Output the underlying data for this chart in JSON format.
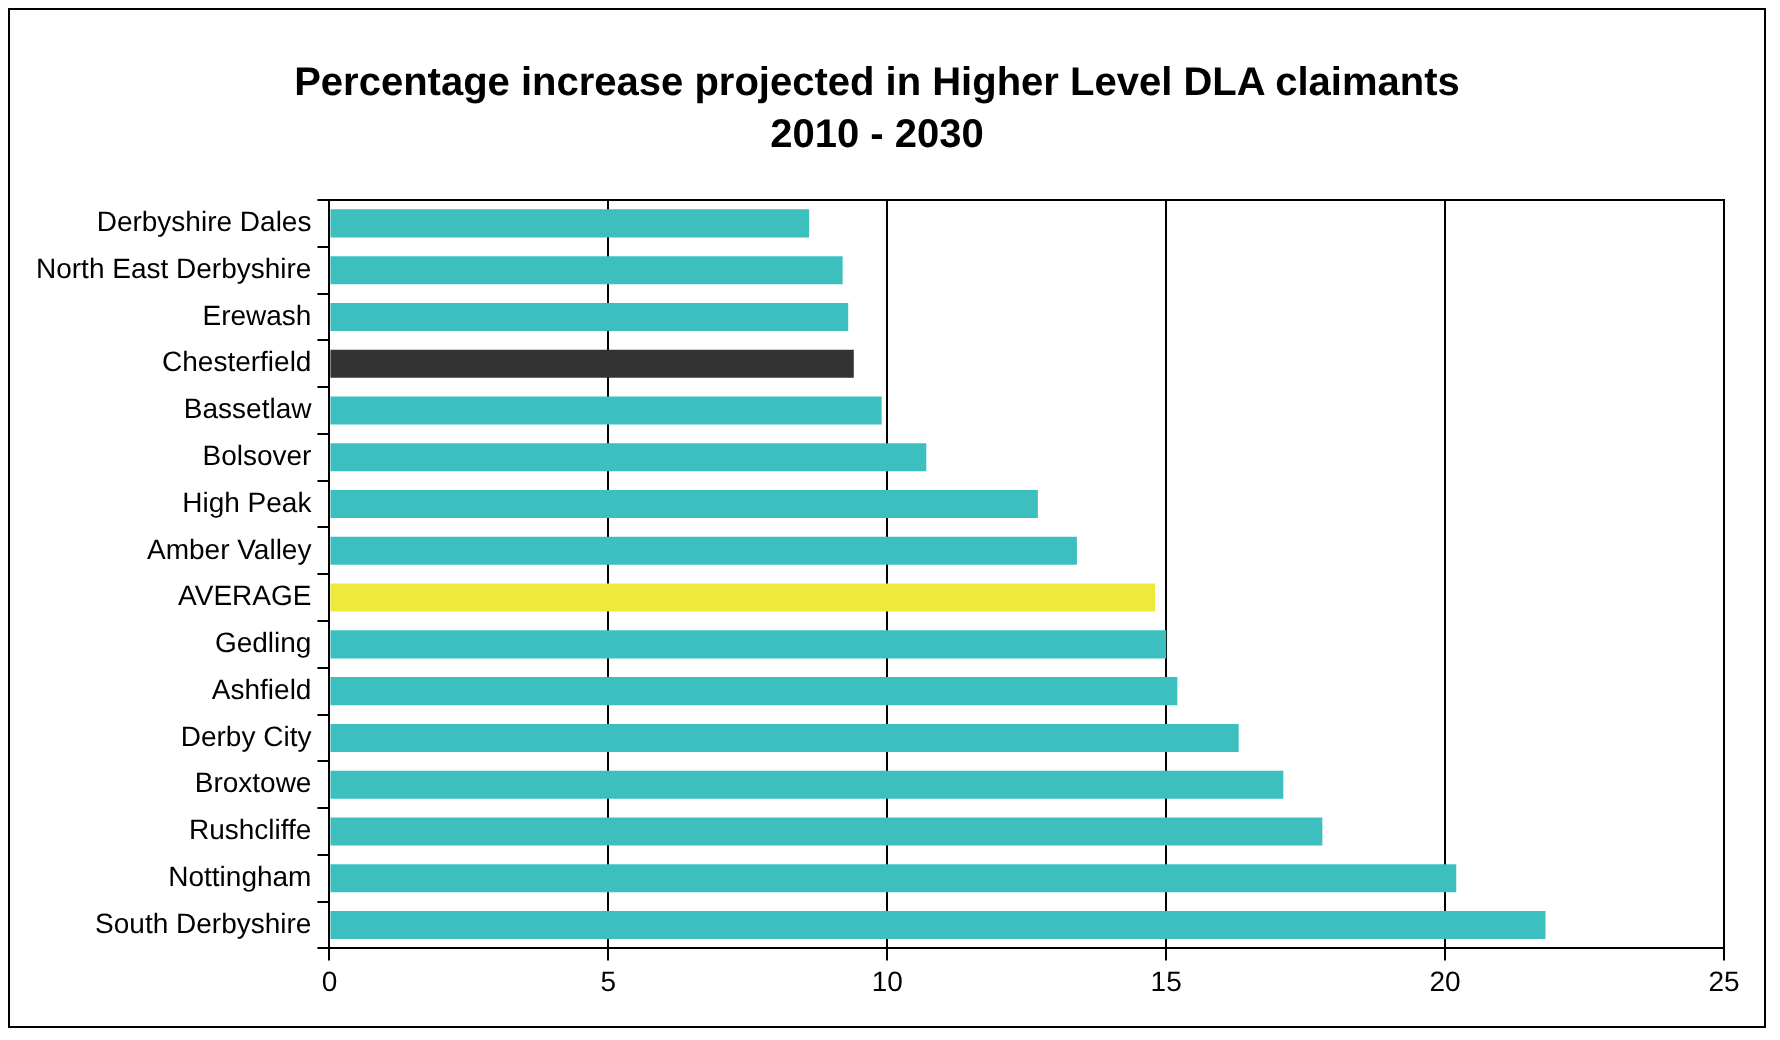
{
  "chart_data": {
    "type": "bar",
    "orientation": "horizontal",
    "title": "Percentage increase projected in Higher Level DLA claimants",
    "subtitle": "2010 - 2030",
    "categories": [
      "Derbyshire Dales",
      "North East Derbyshire",
      "Erewash",
      "Chesterfield",
      "Bassetlaw",
      "Bolsover",
      "High Peak",
      "Amber Valley",
      "AVERAGE",
      "Gedling",
      "Ashfield",
      "Derby City",
      "Broxtowe",
      "Rushcliffe",
      "Nottingham",
      "South Derbyshire"
    ],
    "values": [
      8.6,
      9.2,
      9.3,
      9.4,
      9.9,
      10.7,
      12.7,
      13.4,
      14.8,
      15.0,
      15.2,
      16.3,
      17.1,
      17.8,
      20.2,
      21.8
    ],
    "colors": [
      "#3dbfbf",
      "#3dbfbf",
      "#3dbfbf",
      "#333333",
      "#3dbfbf",
      "#3dbfbf",
      "#3dbfbf",
      "#3dbfbf",
      "#eeea3c",
      "#3dbfbf",
      "#3dbfbf",
      "#3dbfbf",
      "#3dbfbf",
      "#3dbfbf",
      "#3dbfbf",
      "#3dbfbf"
    ],
    "xlim": [
      0,
      25
    ],
    "xticks": [
      0,
      5,
      10,
      15,
      20,
      25
    ],
    "grid": "x",
    "legend": false
  }
}
